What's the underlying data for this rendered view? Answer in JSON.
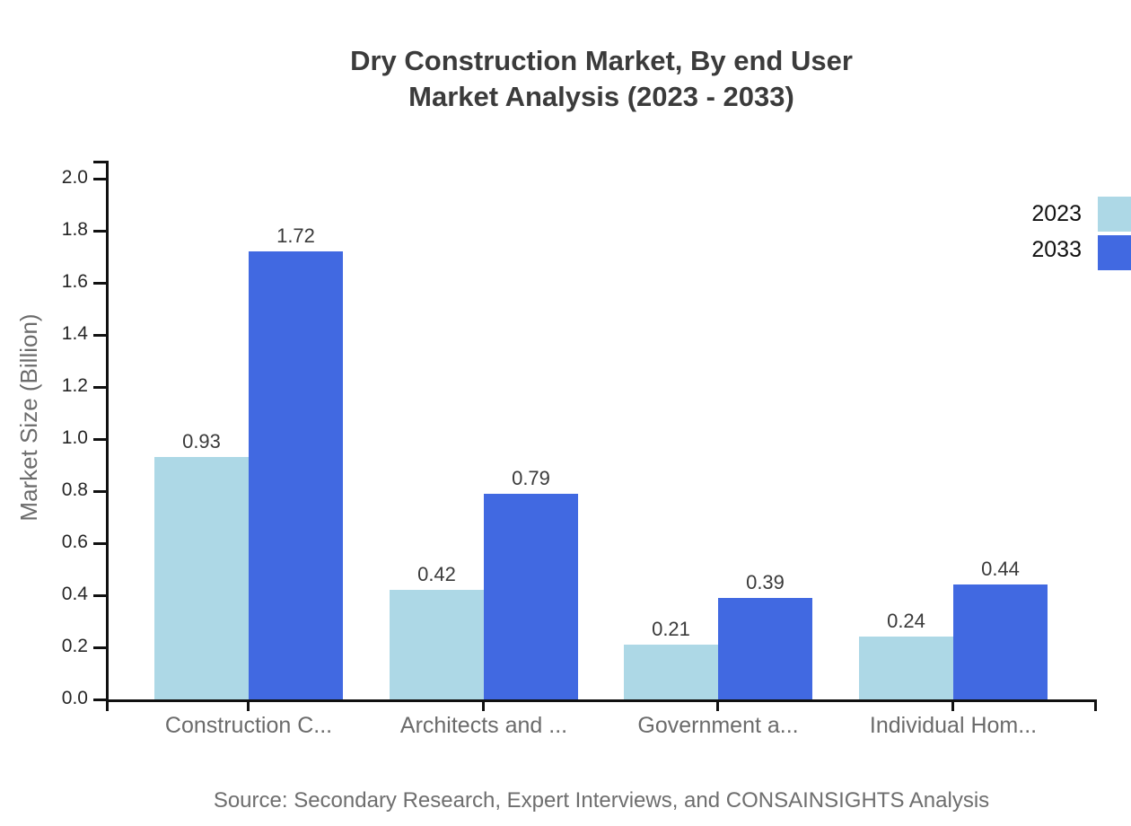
{
  "title": {
    "line1": "Dry Construction Market, By end User",
    "line2": "Market Analysis (2023 - 2033)"
  },
  "chart_data": {
    "type": "bar",
    "categories": [
      "Construction C...",
      "Architects and ...",
      "Government a...",
      "Individual Hom..."
    ],
    "series": [
      {
        "name": "2023",
        "color": "#ADD8E6",
        "values": [
          0.93,
          0.42,
          0.21,
          0.24
        ]
      },
      {
        "name": "2033",
        "color": "#4169E1",
        "values": [
          1.72,
          0.79,
          0.39,
          0.44
        ]
      }
    ],
    "xlabel": "",
    "ylabel": "Market Size (Billion)",
    "ylim": [
      0.0,
      2.0
    ],
    "yticks": [
      0.0,
      0.2,
      0.4,
      0.6,
      0.8,
      1.0,
      1.2,
      1.4,
      1.6,
      1.8,
      2.0
    ],
    "grid": false,
    "legend_position": "top-right",
    "value_labels": true
  },
  "source": "Source: Secondary Research, Expert Interviews, and CONSAINSIGHTS Analysis",
  "colors": {
    "series_2023": "#ADD8E6",
    "series_2033": "#4169E1",
    "axis": "#111111",
    "title_text": "#3b3b3b",
    "muted_text": "#6b6b6b",
    "tick_text": "#262626",
    "value_text": "#3a3a3a"
  }
}
